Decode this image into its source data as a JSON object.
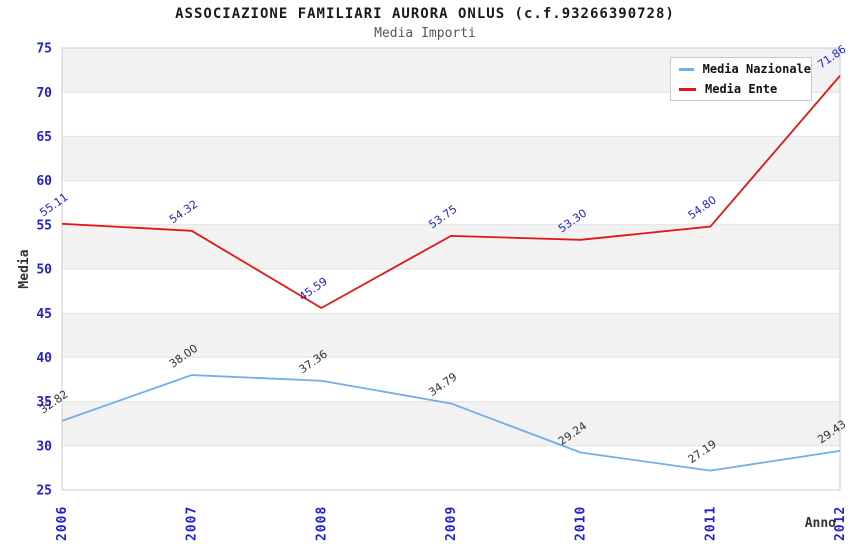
{
  "header": {
    "title": "ASSOCIAZIONE FAMILIARI AURORA ONLUS (c.f.93266390728)",
    "subtitle": "Media Importi"
  },
  "colors": {
    "band": "#F2F2F2",
    "gridline": "#E2E2E2",
    "plot_border": "#CCCCCC",
    "tick_label": "#2222CC",
    "axis_title": "#333333"
  },
  "chart_data": {
    "type": "line",
    "x": [
      "2006",
      "2007",
      "2008",
      "2009",
      "2010",
      "2011",
      "2012"
    ],
    "series": [
      {
        "name": "Media Nazionale",
        "color": "#74AEE4",
        "label_color": "#333333",
        "values": [
          32.82,
          38.0,
          37.36,
          34.79,
          29.24,
          27.19,
          29.43
        ],
        "labels": [
          "32.82",
          "38.00",
          "37.36",
          "34.79",
          "29.24",
          "27.19",
          "29.43"
        ]
      },
      {
        "name": "Media Ente",
        "color": "#E01818",
        "label_color": "#2222CC",
        "values": [
          55.11,
          54.32,
          45.59,
          53.75,
          53.3,
          54.8,
          71.86
        ],
        "labels": [
          "55.11",
          "54.32",
          "45.59",
          "53.75",
          "53.30",
          "54.80",
          "71.86"
        ]
      }
    ],
    "xlabel": "Anno",
    "ylabel": "Media",
    "ylim": [
      25,
      75
    ],
    "ytick_step": 5,
    "grid": true,
    "banded_background": true,
    "legend_position": "top-right",
    "legend": [
      "Media Nazionale",
      "Media Ente"
    ]
  }
}
